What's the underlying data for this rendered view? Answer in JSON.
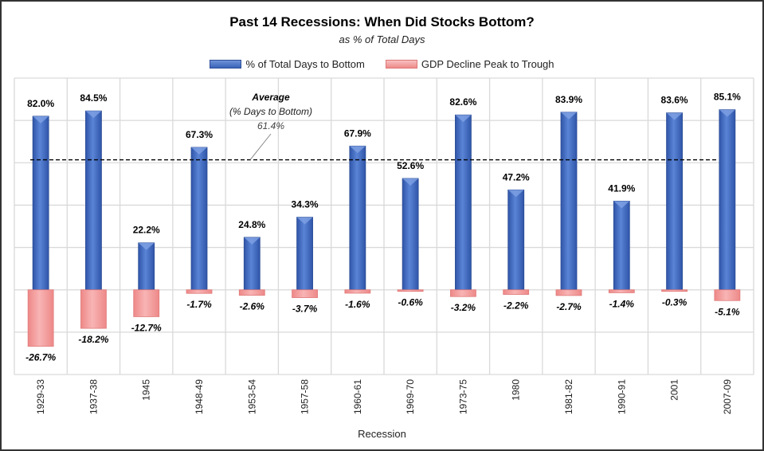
{
  "chart_data": {
    "type": "bar",
    "title": "Past 14 Recessions: When Did Stocks Bottom?",
    "subtitle": "as % of Total Days",
    "xlabel": "Recession",
    "ylabel": "",
    "ylim": [
      -40,
      100
    ],
    "grid": true,
    "legend_position": "top",
    "categories": [
      "1929-33",
      "1937-38",
      "1945",
      "1948-49",
      "1953-54",
      "1957-58",
      "1960-61",
      "1969-70",
      "1973-75",
      "1980",
      "1981-82",
      "1990-91",
      "2001",
      "2007-09"
    ],
    "series": [
      {
        "name": "% of Total Days to Bottom",
        "color": "#4472c4",
        "values": [
          82.0,
          84.5,
          22.2,
          67.3,
          24.8,
          34.3,
          67.9,
          52.6,
          82.6,
          47.2,
          83.9,
          41.9,
          83.6,
          85.1
        ],
        "labels": [
          "82.0%",
          "84.5%",
          "22.2%",
          "67.3%",
          "24.8%",
          "34.3%",
          "67.9%",
          "52.6%",
          "82.6%",
          "47.2%",
          "83.9%",
          "41.9%",
          "83.6%",
          "85.1%"
        ]
      },
      {
        "name": "GDP Decline Peak to Trough",
        "color": "#f4a0a0",
        "values": [
          -26.7,
          -18.2,
          -12.7,
          -1.7,
          -2.6,
          -3.7,
          -1.6,
          -0.6,
          -3.2,
          -2.2,
          -2.7,
          -1.4,
          -0.3,
          -5.1
        ],
        "labels": [
          "-26.7%",
          "-18.2%",
          "-12.7%",
          "-1.7%",
          "-2.6%",
          "-3.7%",
          "-1.6%",
          "-0.6%",
          "-3.2%",
          "-2.2%",
          "-2.7%",
          "-1.4%",
          "-0.3%",
          "-5.1%"
        ]
      }
    ],
    "average": {
      "value": 61.4,
      "title": "Average",
      "subtitle": "(% Days to Bottom)",
      "label": "61.4%"
    }
  }
}
